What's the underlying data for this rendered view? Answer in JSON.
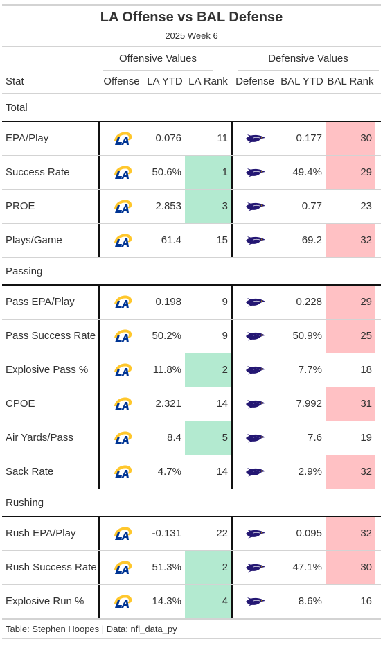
{
  "title": "LA Offense vs BAL Defense",
  "subtitle": "2025 Week 6",
  "spanners": {
    "offense": "Offensive Values",
    "defense": "Defensive Values"
  },
  "columns": {
    "stat": "Stat",
    "offense": "Offense",
    "off_ytd": "LA YTD",
    "off_rank": "LA Rank",
    "defense": "Defense",
    "def_ytd": "BAL YTD",
    "def_rank": "BAL Rank"
  },
  "colors": {
    "good": "#b3ead0",
    "bad": "#ffc1c4"
  },
  "logos": {
    "offense": "rams-logo",
    "defense": "ravens-logo"
  },
  "groups": [
    {
      "label": "Total",
      "rows": [
        {
          "stat": "EPA/Play",
          "off_ytd": "0.076",
          "off_rank": "11",
          "def_ytd": "0.177",
          "def_rank": "30",
          "off_hl": "",
          "def_hl": "bad"
        },
        {
          "stat": "Success Rate",
          "off_ytd": "50.6%",
          "off_rank": "1",
          "def_ytd": "49.4%",
          "def_rank": "29",
          "off_hl": "good",
          "def_hl": "bad"
        },
        {
          "stat": "PROE",
          "off_ytd": "2.853",
          "off_rank": "3",
          "def_ytd": "0.77",
          "def_rank": "23",
          "off_hl": "good",
          "def_hl": ""
        },
        {
          "stat": "Plays/Game",
          "off_ytd": "61.4",
          "off_rank": "15",
          "def_ytd": "69.2",
          "def_rank": "32",
          "off_hl": "",
          "def_hl": "bad"
        }
      ]
    },
    {
      "label": "Passing",
      "rows": [
        {
          "stat": "Pass EPA/Play",
          "off_ytd": "0.198",
          "off_rank": "9",
          "def_ytd": "0.228",
          "def_rank": "29",
          "off_hl": "",
          "def_hl": "bad"
        },
        {
          "stat": "Pass Success Rate",
          "off_ytd": "50.2%",
          "off_rank": "9",
          "def_ytd": "50.9%",
          "def_rank": "25",
          "off_hl": "",
          "def_hl": "bad"
        },
        {
          "stat": "Explosive Pass %",
          "off_ytd": "11.8%",
          "off_rank": "2",
          "def_ytd": "7.7%",
          "def_rank": "18",
          "off_hl": "good",
          "def_hl": ""
        },
        {
          "stat": "CPOE",
          "off_ytd": "2.321",
          "off_rank": "14",
          "def_ytd": "7.992",
          "def_rank": "31",
          "off_hl": "",
          "def_hl": "bad"
        },
        {
          "stat": "Air Yards/Pass",
          "off_ytd": "8.4",
          "off_rank": "5",
          "def_ytd": "7.6",
          "def_rank": "19",
          "off_hl": "good",
          "def_hl": ""
        },
        {
          "stat": "Sack Rate",
          "off_ytd": "4.7%",
          "off_rank": "14",
          "def_ytd": "2.9%",
          "def_rank": "32",
          "off_hl": "",
          "def_hl": "bad"
        }
      ]
    },
    {
      "label": "Rushing",
      "rows": [
        {
          "stat": "Rush EPA/Play",
          "off_ytd": "-0.131",
          "off_rank": "22",
          "def_ytd": "0.095",
          "def_rank": "32",
          "off_hl": "",
          "def_hl": "bad"
        },
        {
          "stat": "Rush Success Rate",
          "off_ytd": "51.3%",
          "off_rank": "2",
          "def_ytd": "47.1%",
          "def_rank": "30",
          "off_hl": "good",
          "def_hl": "bad"
        },
        {
          "stat": "Explosive Run %",
          "off_ytd": "14.3%",
          "off_rank": "4",
          "def_ytd": "8.6%",
          "def_rank": "16",
          "off_hl": "good",
          "def_hl": ""
        }
      ]
    }
  ],
  "source": "Table: Stephen Hoopes | Data: nfl_data_py"
}
